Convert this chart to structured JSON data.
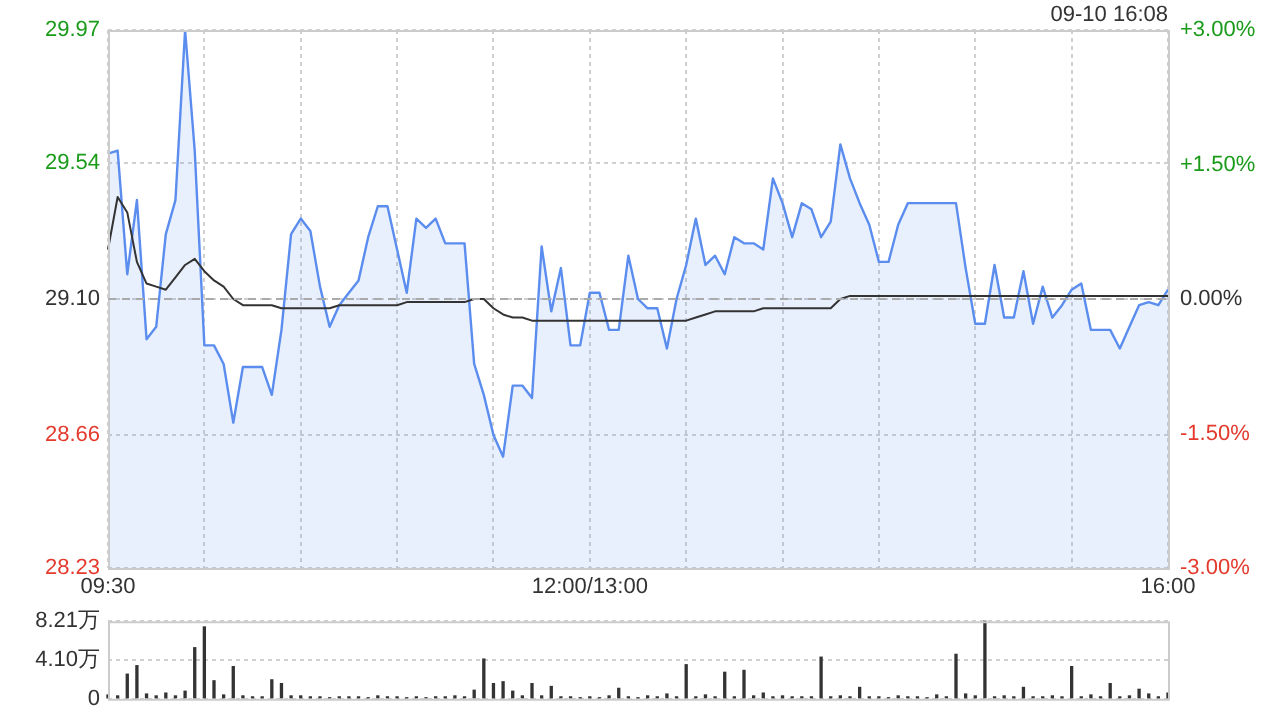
{
  "chart_data": [
    {
      "type": "area",
      "annotations": [
        "09-10 16:08"
      ],
      "legend": false,
      "grid": true,
      "categories": [
        "09:30",
        null,
        null,
        null,
        null,
        null,
        null,
        null,
        null,
        null,
        null,
        null,
        null,
        null,
        null,
        null,
        null,
        null,
        null,
        null,
        null,
        null,
        null,
        null,
        null,
        null,
        null,
        null,
        null,
        null,
        null,
        null,
        null,
        null,
        null,
        null,
        null,
        null,
        null,
        null,
        null,
        null,
        null,
        null,
        null,
        null,
        null,
        null,
        null,
        null,
        "12:00/13:00",
        null,
        null,
        null,
        null,
        null,
        null,
        null,
        null,
        null,
        null,
        null,
        null,
        null,
        null,
        null,
        null,
        null,
        null,
        null,
        null,
        null,
        null,
        null,
        null,
        null,
        null,
        null,
        null,
        null,
        null,
        null,
        null,
        null,
        null,
        null,
        null,
        null,
        null,
        null,
        null,
        null,
        null,
        null,
        null,
        null,
        null,
        null,
        null,
        null,
        null,
        null,
        null,
        null,
        null,
        null,
        null,
        null,
        null,
        null,
        "16:00"
      ],
      "ylim": [
        28.23,
        29.97
      ],
      "yticks": [
        28.23,
        28.66,
        {
          "value": 29.1,
          "label": "29.10"
        },
        29.54,
        29.97
      ],
      "y2lim": [
        -3,
        3
      ],
      "y2ticks": [
        {
          "value": -3,
          "label": "-3.00%"
        },
        {
          "value": -1.5,
          "label": "-1.50%"
        },
        {
          "value": 0,
          "label": "0.00%"
        },
        {
          "value": 1.5,
          "label": "+1.50%"
        },
        {
          "value": 3,
          "label": "+3.00%"
        }
      ],
      "ref_lines": [
        {
          "axis": "y",
          "value": 29.1,
          "color": "#aaaaaa",
          "line_style": "dashed"
        }
      ],
      "series": [
        {
          "type": "area",
          "color": "#5b8def",
          "values": [
            29.57,
            29.58,
            29.18,
            29.42,
            28.97,
            29.01,
            29.31,
            29.42,
            29.97,
            29.58,
            28.95,
            28.95,
            28.89,
            28.7,
            28.88,
            28.88,
            28.88,
            28.79,
            29.0,
            29.31,
            29.36,
            29.32,
            29.14,
            29.01,
            29.08,
            29.12,
            29.16,
            29.3,
            29.4,
            29.4,
            29.26,
            29.12,
            29.36,
            29.33,
            29.36,
            29.28,
            29.28,
            29.28,
            28.89,
            28.79,
            28.66,
            28.59,
            28.82,
            28.82,
            28.78,
            29.27,
            29.06,
            29.2,
            28.95,
            28.95,
            29.12,
            29.12,
            29.0,
            29.0,
            29.24,
            29.1,
            29.07,
            29.07,
            28.94,
            29.1,
            29.21,
            29.36,
            29.21,
            29.24,
            29.18,
            29.3,
            29.28,
            29.28,
            29.26,
            29.49,
            29.41,
            29.3,
            29.41,
            29.39,
            29.3,
            29.35,
            29.6,
            29.49,
            29.41,
            29.34,
            29.22,
            29.22,
            29.34,
            29.41,
            29.41,
            29.41,
            29.41,
            29.41,
            29.41,
            29.2,
            29.02,
            29.02,
            29.21,
            29.04,
            29.04,
            29.19,
            29.02,
            29.14,
            29.04,
            29.08,
            29.13,
            29.15,
            29.0,
            29.0,
            29.0,
            28.94,
            29.01,
            29.08,
            29.09,
            29.08,
            29.13
          ]
        },
        {
          "type": "line",
          "color": "#333333",
          "values": [
            29.26,
            29.43,
            29.38,
            29.22,
            29.15,
            29.14,
            29.13,
            29.17,
            29.21,
            29.23,
            29.19,
            29.16,
            29.14,
            29.1,
            29.08,
            29.08,
            29.08,
            29.08,
            29.07,
            29.07,
            29.07,
            29.07,
            29.07,
            29.07,
            29.08,
            29.08,
            29.08,
            29.08,
            29.08,
            29.08,
            29.08,
            29.09,
            29.09,
            29.09,
            29.09,
            29.09,
            29.09,
            29.09,
            29.1,
            29.1,
            29.07,
            29.05,
            29.04,
            29.04,
            29.03,
            29.03,
            29.03,
            29.03,
            29.03,
            29.03,
            29.03,
            29.03,
            29.03,
            29.03,
            29.03,
            29.03,
            29.03,
            29.03,
            29.03,
            29.03,
            29.03,
            29.04,
            29.05,
            29.06,
            29.06,
            29.06,
            29.06,
            29.06,
            29.07,
            29.07,
            29.07,
            29.07,
            29.07,
            29.07,
            29.07,
            29.07,
            29.1,
            29.11,
            29.11,
            29.11,
            29.11,
            29.11,
            29.11,
            29.11,
            29.11,
            29.11,
            29.11,
            29.11,
            29.11,
            29.11,
            29.11,
            29.11,
            29.11,
            29.11,
            29.11,
            29.11,
            29.11,
            29.11,
            29.11,
            29.11,
            29.11,
            29.11,
            29.11,
            29.11,
            29.11,
            29.11,
            29.11,
            29.11,
            29.11,
            29.11,
            29.11
          ]
        }
      ]
    },
    {
      "type": "bar",
      "legend": false,
      "grid": "y",
      "tick_labels": "y",
      "categories": [
        null,
        null,
        null,
        null,
        null,
        null,
        null,
        null,
        null,
        null,
        null,
        null,
        null,
        null,
        null,
        null,
        null,
        null,
        null,
        null,
        null,
        null,
        null,
        null,
        null,
        null,
        null,
        null,
        null,
        null,
        null,
        null,
        null,
        null,
        null,
        null,
        null,
        null,
        null,
        null,
        null,
        null,
        null,
        null,
        null,
        null,
        null,
        null,
        null,
        null,
        null,
        null,
        null,
        null,
        null,
        null,
        null,
        null,
        null,
        null,
        null,
        null,
        null,
        null,
        null,
        null,
        null,
        null,
        null,
        null,
        null,
        null,
        null,
        null,
        null,
        null,
        null,
        null,
        null,
        null,
        null,
        null,
        null,
        null,
        null,
        null,
        null,
        null,
        null,
        null,
        null,
        null,
        null,
        null,
        null,
        null,
        null,
        null,
        null,
        null,
        null,
        null,
        null,
        null,
        null,
        null,
        null,
        null,
        null,
        null,
        null
      ],
      "ylim": [
        0,
        8.21
      ],
      "yticks": [
        0,
        {
          "value": 4.1,
          "label": "4.10万"
        },
        {
          "value": 8.21,
          "label": "8.21万"
        }
      ],
      "series": [
        {
          "color": "#333333",
          "values": [
            0.4,
            0.3,
            2.6,
            3.5,
            0.5,
            0.3,
            0.6,
            0.3,
            0.8,
            5.4,
            7.6,
            1.9,
            0.4,
            3.4,
            0.3,
            0.2,
            0.2,
            2.0,
            1.6,
            0.3,
            0.3,
            0.2,
            0.2,
            0.1,
            0.2,
            0.2,
            0.2,
            0.1,
            0.3,
            0.2,
            0.2,
            0.1,
            0.2,
            0.1,
            0.2,
            0.2,
            0.3,
            0.2,
            0.9,
            4.2,
            1.6,
            1.8,
            0.8,
            0.3,
            1.6,
            0.3,
            1.3,
            0.2,
            0.2,
            0.1,
            0.2,
            0.1,
            0.3,
            1.1,
            0.2,
            0.1,
            0.3,
            0.2,
            0.5,
            0.2,
            3.6,
            0.2,
            0.4,
            0.2,
            2.8,
            0.2,
            3.0,
            0.3,
            0.6,
            0.2,
            0.3,
            0.2,
            0.2,
            0.2,
            4.4,
            0.2,
            0.3,
            0.2,
            1.2,
            0.2,
            0.2,
            0.1,
            0.3,
            0.2,
            0.2,
            0.1,
            0.4,
            0.2,
            4.7,
            0.5,
            0.3,
            8.2,
            0.2,
            0.3,
            0.2,
            1.2,
            0.2,
            0.2,
            0.3,
            0.2,
            3.4,
            0.2,
            0.4,
            0.2,
            1.6,
            0.2,
            0.3,
            1.0,
            0.5,
            0.2,
            0.6
          ]
        }
      ]
    }
  ]
}
